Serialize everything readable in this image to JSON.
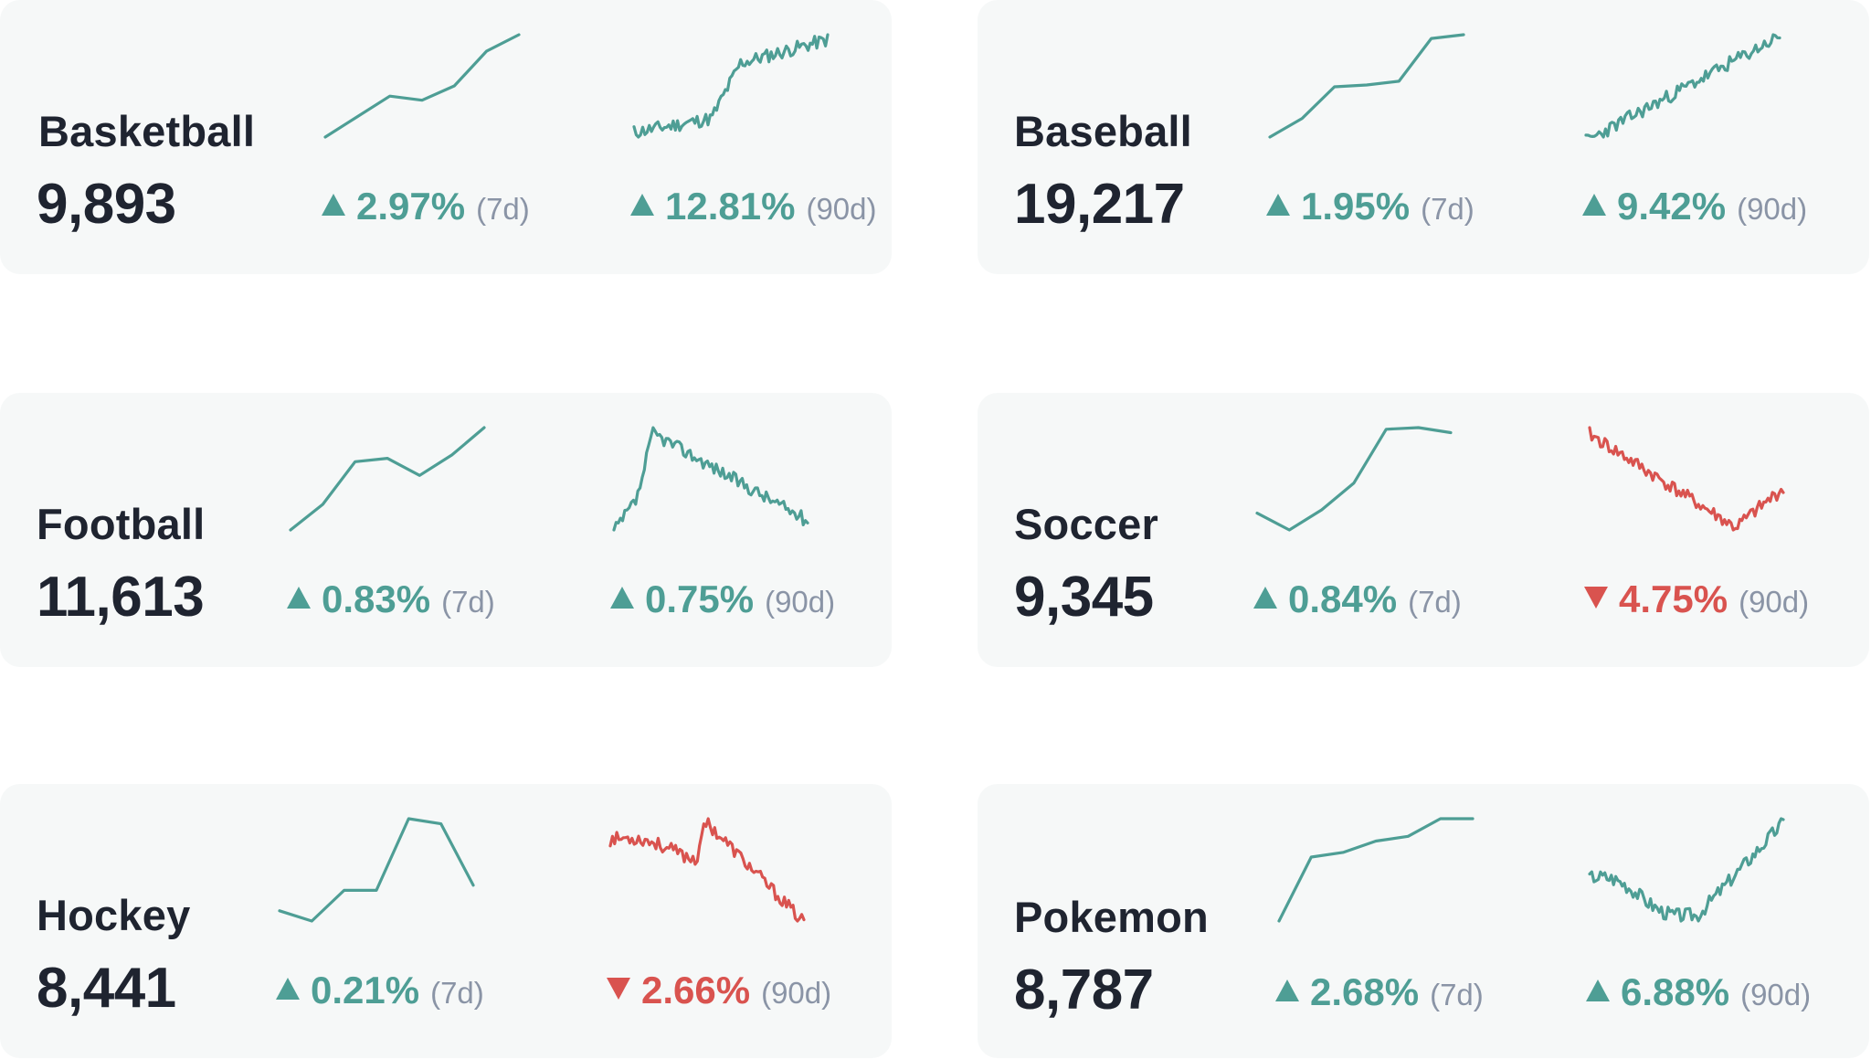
{
  "colors": {
    "up": "#4e9e95",
    "down": "#d9534f",
    "card": "#f6f8f8",
    "text": "#1f2430",
    "muted": "#8a94a6"
  },
  "cards": [
    {
      "name": "Basketball",
      "value": "9,893",
      "change7": {
        "direction": "up",
        "pct": "2.97%",
        "period": "(7d)"
      },
      "change90": {
        "direction": "up",
        "pct": "12.81%",
        "period": "(90d)"
      }
    },
    {
      "name": "Baseball",
      "value": "19,217",
      "change7": {
        "direction": "up",
        "pct": "1.95%",
        "period": "(7d)"
      },
      "change90": {
        "direction": "up",
        "pct": "9.42%",
        "period": "(90d)"
      }
    },
    {
      "name": "Football",
      "value": "11,613",
      "change7": {
        "direction": "up",
        "pct": "0.83%",
        "period": "(7d)"
      },
      "change90": {
        "direction": "up",
        "pct": "0.75%",
        "period": "(90d)"
      }
    },
    {
      "name": "Soccer",
      "value": "9,345",
      "change7": {
        "direction": "up",
        "pct": "0.84%",
        "period": "(7d)"
      },
      "change90": {
        "direction": "down",
        "pct": "4.75%",
        "period": "(90d)"
      }
    },
    {
      "name": "Hockey",
      "value": "8,441",
      "change7": {
        "direction": "up",
        "pct": "0.21%",
        "period": "(7d)"
      },
      "change90": {
        "direction": "down",
        "pct": "2.66%",
        "period": "(90d)"
      }
    },
    {
      "name": "Pokemon",
      "value": "8,787",
      "change7": {
        "direction": "up",
        "pct": "2.68%",
        "period": "(7d)"
      },
      "change90": {
        "direction": "up",
        "pct": "6.88%",
        "period": "(90d)"
      }
    }
  ],
  "chart_data": [
    {
      "type": "line",
      "card": "Basketball",
      "window": "7d",
      "trend": "up",
      "values": [
        0,
        1,
        2,
        1.8,
        2.5,
        4.2,
        5
      ]
    },
    {
      "type": "line",
      "card": "Basketball",
      "window": "90d",
      "trend": "up",
      "shape": "rise-mid",
      "seed": 11
    },
    {
      "type": "line",
      "card": "Baseball",
      "window": "7d",
      "trend": "up",
      "values": [
        0,
        1,
        2.7,
        2.8,
        3.0,
        5.3,
        5.5
      ]
    },
    {
      "type": "line",
      "card": "Baseball",
      "window": "90d",
      "trend": "up",
      "shape": "steady-rise",
      "seed": 23
    },
    {
      "type": "line",
      "card": "Football",
      "window": "7d",
      "trend": "up",
      "values": [
        0,
        1.5,
        4.0,
        4.2,
        3.2,
        4.4,
        6.0
      ]
    },
    {
      "type": "line",
      "card": "Football",
      "window": "90d",
      "trend": "up",
      "shape": "spike-decay",
      "seed": 37
    },
    {
      "type": "line",
      "card": "Soccer",
      "window": "7d",
      "trend": "up",
      "values": [
        1,
        0,
        1.2,
        2.8,
        6.0,
        6.1,
        5.8
      ]
    },
    {
      "type": "line",
      "card": "Soccer",
      "window": "90d",
      "trend": "down",
      "shape": "fall-recover",
      "seed": 41
    },
    {
      "type": "line",
      "card": "Hockey",
      "window": "7d",
      "trend": "up",
      "values": [
        0.6,
        0,
        1.8,
        1.8,
        6.0,
        5.7,
        2.1
      ]
    },
    {
      "type": "line",
      "card": "Hockey",
      "window": "90d",
      "trend": "down",
      "shape": "bump-fall",
      "seed": 53
    },
    {
      "type": "line",
      "card": "Pokemon",
      "window": "7d",
      "trend": "up",
      "values": [
        0,
        4.0,
        4.3,
        5.0,
        5.3,
        6.4,
        6.4
      ]
    },
    {
      "type": "line",
      "card": "Pokemon",
      "window": "90d",
      "trend": "up",
      "shape": "dip-rise",
      "seed": 67
    }
  ]
}
